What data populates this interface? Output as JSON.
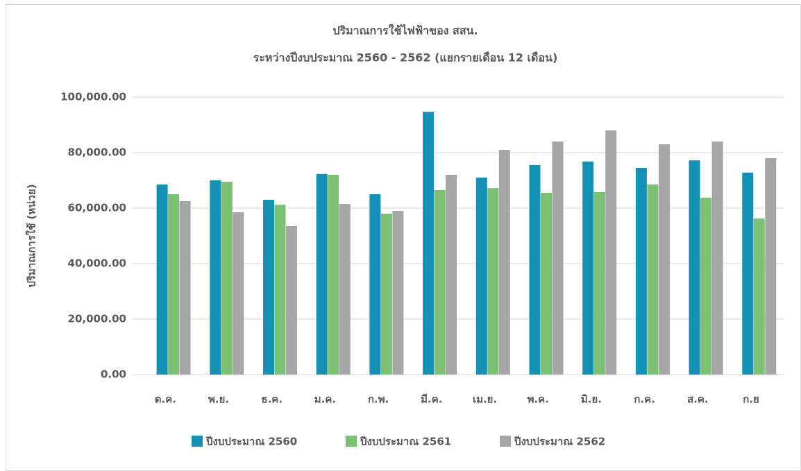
{
  "chart_data": {
    "type": "bar",
    "title": "ปริมาณการใช้ไฟฟ้าของ สสน.",
    "subtitle": "ระหว่างปีงบประมาณ 2560 - 2562 (แยกรายเดือน 12 เดือน)",
    "y_label": "ปริมาณการใช้ (หน่วย)",
    "categories": [
      "ต.ค.",
      "พ.ย.",
      "ธ.ค.",
      "ม.ค.",
      "ก.พ.",
      "มี.ค.",
      "เม.ย.",
      "พ.ค.",
      "มิ.ย.",
      "ก.ค.",
      "ส.ค.",
      "ก.ย"
    ],
    "series": [
      {
        "name": "ปีงบประมาณ 2560",
        "color": "#1591b5",
        "values": [
          68500,
          70000,
          63000,
          72300,
          65000,
          94700,
          71000,
          75500,
          76800,
          74500,
          77200,
          72800
        ]
      },
      {
        "name": "ปีงบประมาณ 2561",
        "color": "#7dbf75",
        "values": [
          65000,
          69500,
          61200,
          72000,
          58000,
          66500,
          67200,
          65500,
          65800,
          68500,
          63800,
          56300
        ]
      },
      {
        "name": "ปีงบประมาณ 2562",
        "color": "#a6a6a6",
        "values": [
          62500,
          58500,
          53500,
          61500,
          59000,
          72000,
          81000,
          84000,
          88000,
          83000,
          84000,
          78000
        ]
      }
    ],
    "ylim": [
      0,
      100000
    ],
    "yticks": [
      {
        "value": 0,
        "label": "0.00"
      },
      {
        "value": 20000,
        "label": "20,000.00"
      },
      {
        "value": 40000,
        "label": "40,000.00"
      },
      {
        "value": 60000,
        "label": "60,000.00"
      },
      {
        "value": 80000,
        "label": "80,000.00"
      },
      {
        "value": 100000,
        "label": "100,000.00"
      }
    ],
    "grid": true,
    "legend": "bottom"
  }
}
